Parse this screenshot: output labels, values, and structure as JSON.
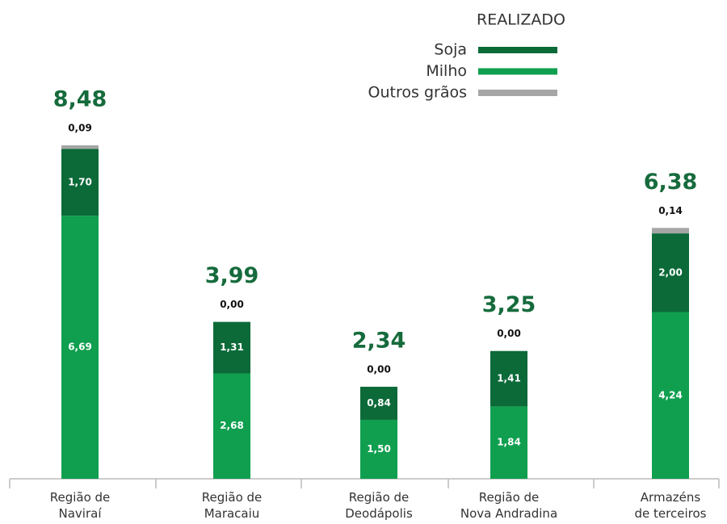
{
  "chart_data": {
    "type": "stacked_bar",
    "legend_title": "REALIZADO",
    "categories": [
      "Região de\nNaviraí",
      "Região de\nMaracaiu",
      "Região de\nDeodápolis",
      "Região de\nNova Andradina",
      "Armazéns\nde terceiros"
    ],
    "series": [
      {
        "name": "Soja",
        "color": "#0b6a38",
        "values": [
          1.7,
          1.31,
          0.84,
          1.41,
          2.0
        ],
        "value_labels": [
          "1,70",
          "1,31",
          "0,84",
          "1,41",
          "2,00"
        ]
      },
      {
        "name": "Milho",
        "color": "#0f9f4f",
        "values": [
          6.69,
          2.68,
          1.5,
          1.84,
          4.24
        ],
        "value_labels": [
          "6,69",
          "2,68",
          "1,50",
          "1,84",
          "4,24"
        ]
      },
      {
        "name": "Outros grãos",
        "color": "#a6a6a6",
        "values": [
          0.09,
          0.0,
          0.0,
          0.0,
          0.14
        ],
        "value_labels": [
          "0,09",
          "0,00",
          "0,00",
          "0,00",
          "0,14"
        ]
      }
    ],
    "totals": [
      8.48,
      3.99,
      2.34,
      3.25,
      6.38
    ],
    "totals_labels": [
      "8,48",
      "3,99",
      "2,34",
      "3,25",
      "6,38"
    ],
    "totals_color": "#166b3c"
  }
}
